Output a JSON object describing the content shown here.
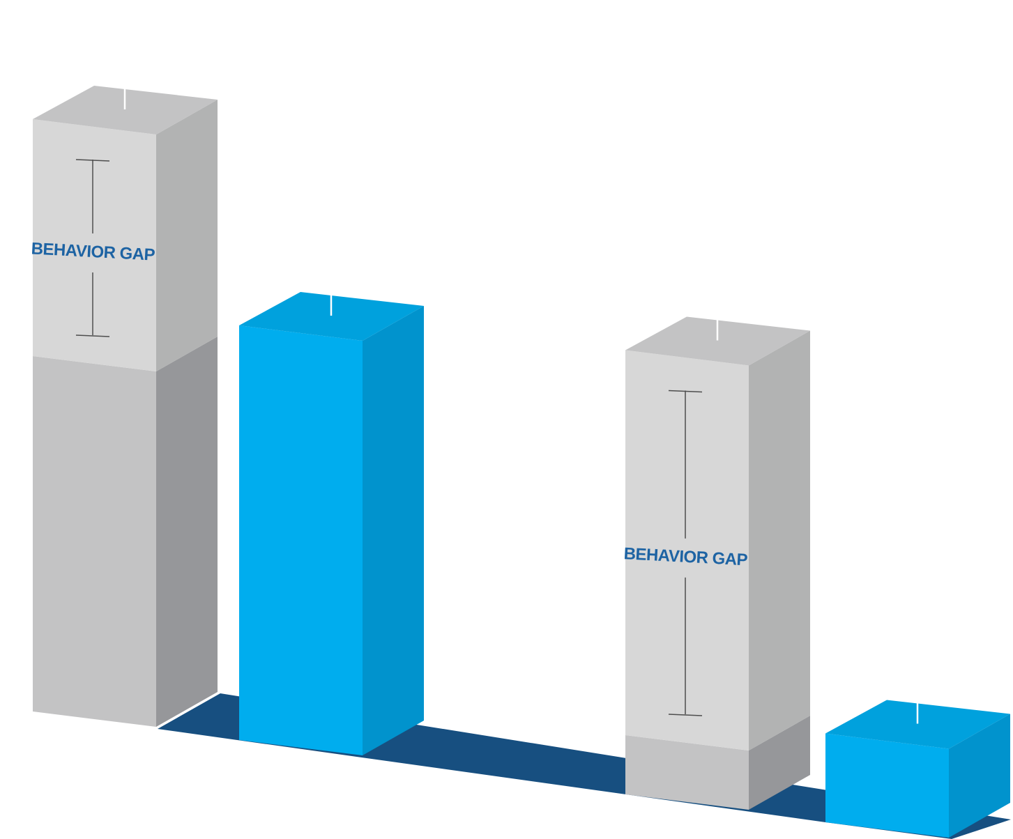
{
  "chart_data": {
    "type": "bar",
    "title": "",
    "xlabel": "",
    "ylabel": "",
    "grid": false,
    "legend": "none",
    "ylim": [
      0,
      100
    ],
    "categories": [
      "",
      ""
    ],
    "series": [
      {
        "values": [
          100,
          75
        ]
      },
      {
        "values": [
          70,
          15
        ]
      }
    ],
    "base_values": [
      60,
      10
    ],
    "annotations": [
      {
        "group": 0,
        "label": "BEHAVIOR GAP"
      },
      {
        "group": 1,
        "label": "BEHAVIOR GAP"
      }
    ]
  },
  "colors": {
    "gray_front": "#c3c3c4",
    "gray_side": "#96979a",
    "gray_top": "#c3c3c4",
    "gap_front": "#d7d7d7",
    "gap_side": "#b2b3b3",
    "blue_front": "#00adee",
    "blue_side": "#0193cd",
    "blue_top": "#00a1dd",
    "floor": "#174f80",
    "gap_label": "#1d63a3",
    "tick": "#ffffff",
    "bracket": "#4d4d4d"
  }
}
